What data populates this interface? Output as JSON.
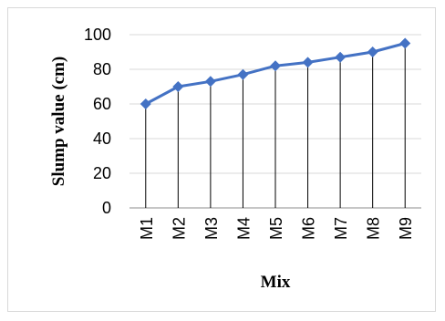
{
  "chart_data": {
    "type": "line",
    "categories": [
      "M1",
      "M2",
      "M3",
      "M4",
      "M5",
      "M6",
      "M7",
      "M8",
      "M9"
    ],
    "series": [
      {
        "values": [
          60,
          70,
          73,
          77,
          82,
          84,
          87,
          90,
          95
        ]
      }
    ],
    "xlabel": "Mix",
    "ylabel": "Slump value (cm)",
    "ylim": [
      0,
      100
    ],
    "yticks": [
      0,
      20,
      40,
      60,
      80,
      100
    ],
    "grid": true,
    "line_color": "#4472c4",
    "marker": "diamond",
    "drop_lines": true
  }
}
